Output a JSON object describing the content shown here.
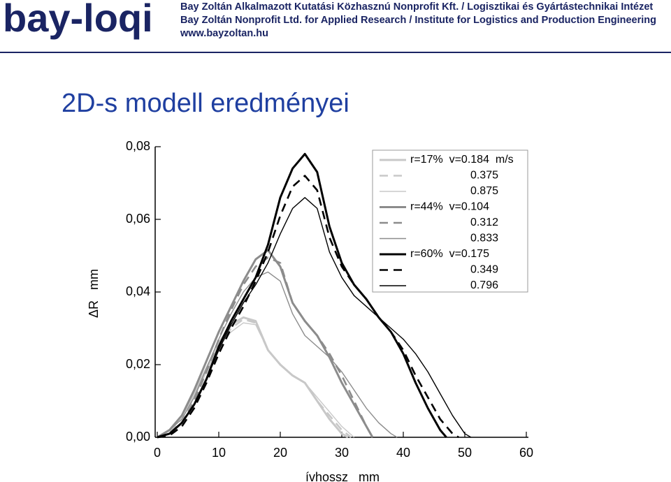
{
  "header": {
    "logo": "bay-loqi",
    "lines": [
      "Bay Zoltán Alkalmazott Kutatási Közhasznú Nonprofit Kft. / Logisztikai és Gyártástechnikai Intézet",
      "Bay Zoltán Nonprofit Ltd. for Applied Research / Institute for Logistics and Production Engineering",
      "www.bayzoltan.hu"
    ]
  },
  "chart_data": {
    "type": "line",
    "title": "2D-s modell eredményei",
    "x_label": "ívhossz   mm",
    "y_label": "ΔR   mm",
    "xlim": [
      0,
      60
    ],
    "xticks": [
      0,
      10,
      20,
      30,
      40,
      50,
      60
    ],
    "ylim": [
      0,
      0.08
    ],
    "yticks": [
      {
        "value": 0,
        "label": "0,00"
      },
      {
        "value": 0.02,
        "label": "0,02"
      },
      {
        "value": 0.04,
        "label": "0,04"
      },
      {
        "value": 0.06,
        "label": "0,06"
      },
      {
        "value": 0.08,
        "label": "0,08"
      }
    ],
    "legend": "upper right",
    "series": [
      {
        "name": "r=17%  v=0.184  m/s",
        "color": "#c8c8c8",
        "style": "thick",
        "x": [
          0,
          2,
          4,
          6,
          8,
          10,
          12,
          14,
          16,
          18,
          20,
          22,
          24,
          26,
          28,
          30,
          31
        ],
        "values": [
          0,
          0.002,
          0.006,
          0.012,
          0.019,
          0.026,
          0.031,
          0.033,
          0.032,
          0.024,
          0.02,
          0.017,
          0.015,
          0.01,
          0.005,
          0.001,
          0
        ]
      },
      {
        "name": "0.375",
        "color": "#c8c8c8",
        "style": "dashed",
        "x": [
          0,
          2,
          4,
          6,
          8,
          10,
          12,
          14,
          16,
          18,
          20,
          22,
          24,
          26,
          28,
          30,
          31.5
        ],
        "values": [
          0,
          0.0015,
          0.005,
          0.011,
          0.018,
          0.025,
          0.03,
          0.0325,
          0.0315,
          0.024,
          0.02,
          0.017,
          0.015,
          0.01,
          0.006,
          0.002,
          0
        ]
      },
      {
        "name": "0.875",
        "color": "#c8c8c8",
        "style": "thin",
        "x": [
          0,
          2,
          4,
          6,
          8,
          10,
          12,
          14,
          16,
          18,
          20,
          22,
          24,
          26,
          28,
          30,
          32
        ],
        "values": [
          0,
          0.002,
          0.006,
          0.011,
          0.018,
          0.025,
          0.029,
          0.0315,
          0.031,
          0.024,
          0.02,
          0.017,
          0.015,
          0.011,
          0.007,
          0.003,
          0
        ]
      },
      {
        "name": "r=44%  v=0.104",
        "color": "#8c8c8c",
        "style": "thick",
        "x": [
          0,
          2,
          4,
          6,
          8,
          10,
          12,
          14,
          16,
          18,
          20,
          22,
          24,
          26,
          28,
          30,
          32,
          34,
          35
        ],
        "values": [
          0,
          0.002,
          0.006,
          0.013,
          0.021,
          0.029,
          0.036,
          0.043,
          0.049,
          0.0515,
          0.047,
          0.037,
          0.032,
          0.028,
          0.022,
          0.015,
          0.009,
          0.003,
          0
        ]
      },
      {
        "name": "0.312",
        "color": "#8c8c8c",
        "style": "dashed",
        "x": [
          0,
          2,
          4,
          6,
          8,
          10,
          12,
          14,
          16,
          18,
          20,
          22,
          24,
          26,
          28,
          30,
          32,
          34,
          35
        ],
        "values": [
          0,
          0.001,
          0.004,
          0.01,
          0.018,
          0.027,
          0.035,
          0.042,
          0.047,
          0.0495,
          0.048,
          0.037,
          0.032,
          0.028,
          0.023,
          0.017,
          0.01,
          0.003,
          0
        ]
      },
      {
        "name": "0.833",
        "color": "#8c8c8c",
        "style": "thin",
        "x": [
          0,
          2,
          4,
          6,
          8,
          10,
          12,
          14,
          16,
          18,
          20,
          22,
          24,
          26,
          28,
          30,
          32,
          34,
          36,
          38,
          39
        ],
        "values": [
          0,
          0.002,
          0.005,
          0.011,
          0.019,
          0.027,
          0.034,
          0.04,
          0.044,
          0.0455,
          0.043,
          0.034,
          0.028,
          0.025,
          0.022,
          0.018,
          0.013,
          0.008,
          0.004,
          0.001,
          0
        ]
      },
      {
        "name": "r=60%  v=0.175",
        "color": "#000000",
        "style": "thick",
        "x": [
          0,
          2,
          4,
          6,
          8,
          10,
          12,
          14,
          16,
          18,
          20,
          22,
          24,
          26,
          28,
          30,
          32,
          34,
          36,
          38,
          40,
          42,
          44,
          46,
          47
        ],
        "values": [
          0,
          0.001,
          0.004,
          0.009,
          0.016,
          0.025,
          0.032,
          0.038,
          0.044,
          0.053,
          0.066,
          0.074,
          0.078,
          0.073,
          0.058,
          0.048,
          0.042,
          0.038,
          0.033,
          0.029,
          0.023,
          0.015,
          0.008,
          0.002,
          0
        ]
      },
      {
        "name": "0.349",
        "color": "#000000",
        "style": "dashed",
        "x": [
          0,
          2,
          4,
          6,
          8,
          10,
          12,
          14,
          16,
          18,
          20,
          22,
          24,
          26,
          28,
          30,
          32,
          34,
          36,
          38,
          40,
          42,
          44,
          46,
          48,
          49
        ],
        "values": [
          0,
          0.0005,
          0.003,
          0.008,
          0.015,
          0.023,
          0.03,
          0.036,
          0.043,
          0.051,
          0.061,
          0.069,
          0.072,
          0.068,
          0.055,
          0.047,
          0.042,
          0.038,
          0.033,
          0.029,
          0.024,
          0.017,
          0.011,
          0.005,
          0.001,
          0
        ]
      },
      {
        "name": "0.796",
        "color": "#000000",
        "style": "thin",
        "x": [
          0,
          2,
          4,
          6,
          8,
          10,
          12,
          14,
          16,
          18,
          20,
          22,
          24,
          26,
          28,
          30,
          32,
          34,
          36,
          38,
          40,
          42,
          44,
          46,
          48,
          50,
          51
        ],
        "values": [
          0,
          0.001,
          0.004,
          0.009,
          0.016,
          0.024,
          0.031,
          0.037,
          0.042,
          0.048,
          0.056,
          0.063,
          0.066,
          0.063,
          0.051,
          0.044,
          0.039,
          0.036,
          0.033,
          0.03,
          0.027,
          0.023,
          0.018,
          0.012,
          0.006,
          0.001,
          0
        ]
      }
    ]
  }
}
